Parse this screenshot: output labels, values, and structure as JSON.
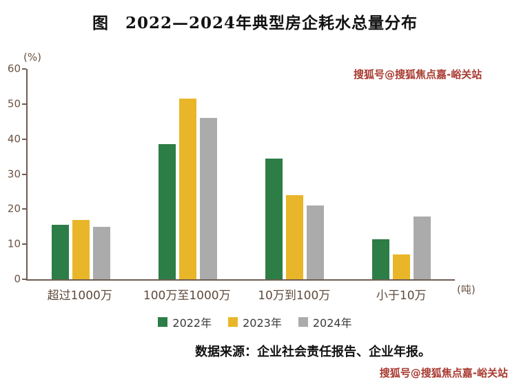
{
  "title": "图　2022—2024年典型房企耗水总量分布",
  "watermark": {
    "text": "搜狐号@搜狐焦点嘉-峪关站"
  },
  "source": "数据来源：企业社会责任报告、企业年报。",
  "chart_data": {
    "type": "bar",
    "title": "图 2022—2024年典型房企耗水总量分布",
    "unit_y": "(%)",
    "unit_x": "(吨)",
    "categories": [
      "超过1000万",
      "100万至1000万",
      "10万到100万",
      "小于10万"
    ],
    "series": [
      {
        "name": "2022年",
        "color": "#2d7d46",
        "values": [
          15.5,
          38.5,
          34.5,
          11.5
        ]
      },
      {
        "name": "2023年",
        "color": "#e9b629",
        "values": [
          17,
          51.5,
          24,
          7
        ]
      },
      {
        "name": "2024年",
        "color": "#ababab",
        "values": [
          15,
          46,
          21,
          18
        ]
      }
    ],
    "ylim": [
      0,
      60
    ],
    "yticks": [
      0,
      10,
      20,
      30,
      40,
      50,
      60
    ],
    "grid": false,
    "legend_position": "bottom",
    "source_note": "数据来源：企业社会责任报告、企业年报。"
  }
}
